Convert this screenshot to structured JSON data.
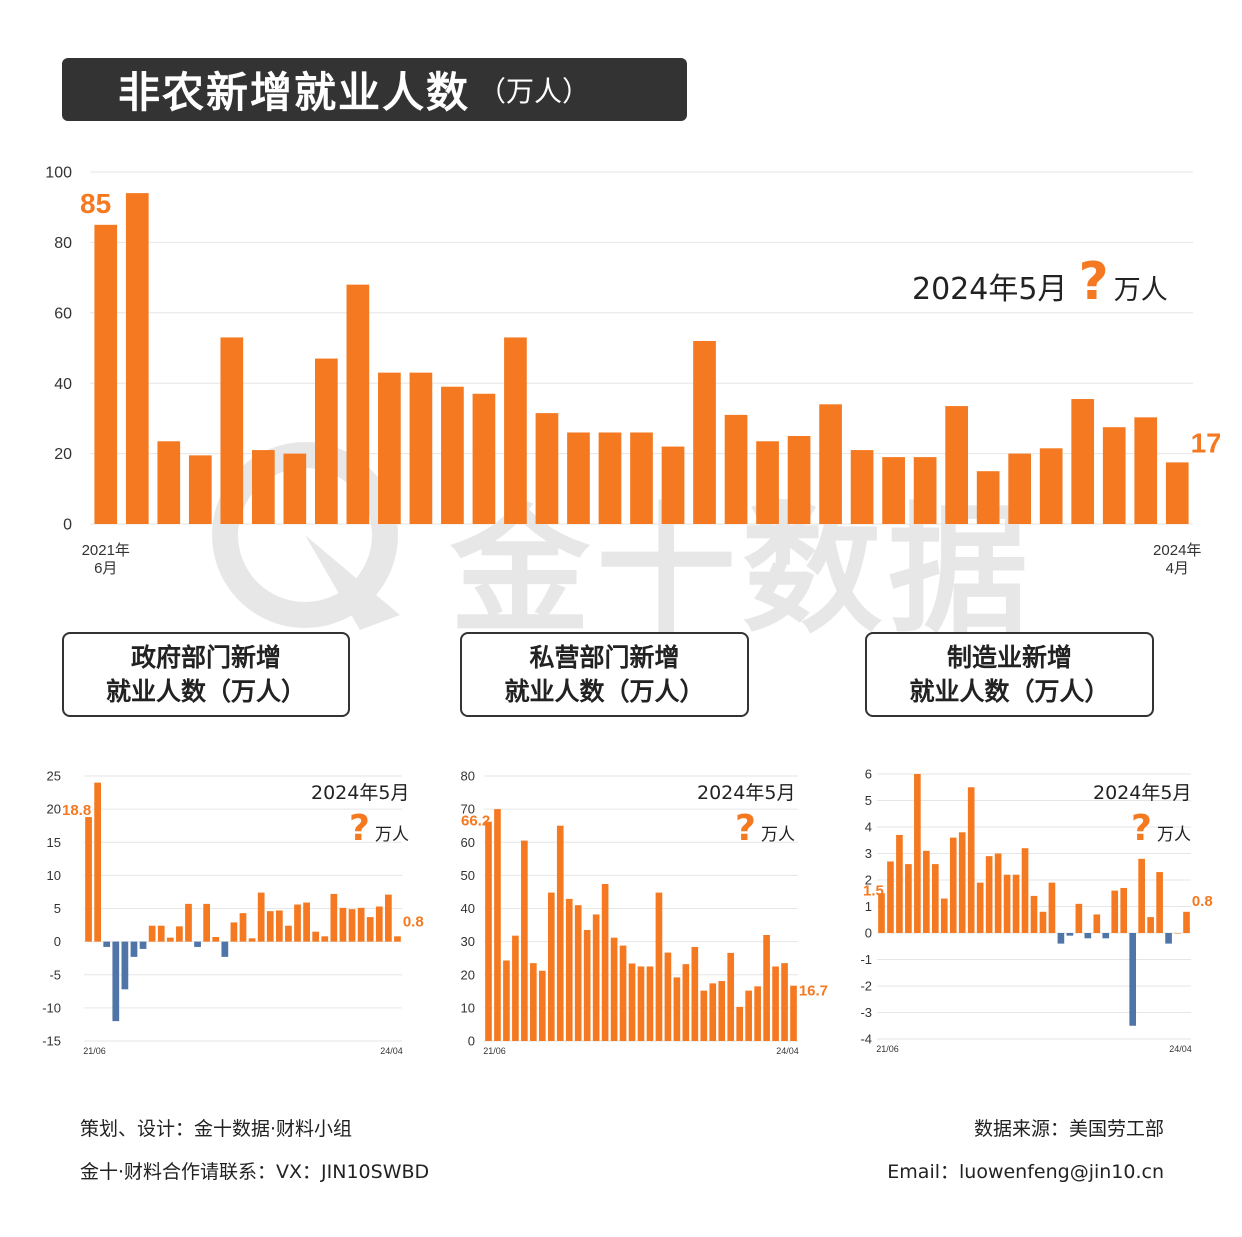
{
  "header": {
    "title": "非农新增就业人数",
    "unit": "（万人）"
  },
  "watermark": {
    "brand": "金十数据"
  },
  "colors": {
    "accent": "#f47920",
    "negative": "#4e74a8",
    "title_bg": "#333333"
  },
  "main_annotation": {
    "period": "2024年5月",
    "question": "?",
    "unit": "万人"
  },
  "sub_titles": [
    {
      "line1": "政府部门新增",
      "line2": "就业人数（万人）"
    },
    {
      "line1": "私营部门新增",
      "line2": "就业人数（万人）"
    },
    {
      "line1": "制造业新增",
      "line2": "就业人数（万人）"
    }
  ],
  "sub_annotation": {
    "period": "2024年5月",
    "question": "?",
    "unit": "万人"
  },
  "footer": {
    "credit": "策划、设计：金十数据·财料小组",
    "contact": "金十·财料合作请联系：VX：JIN10SWBD",
    "source": "数据来源：美国劳工部",
    "email": "Email：luowenfeng@jin10.cn"
  },
  "chart_data": [
    {
      "type": "bar",
      "title": "非农新增就业人数（万人）",
      "y_ticks": [
        "100",
        "80",
        "60",
        "40",
        "20",
        "0"
      ],
      "ylim": [
        0,
        100
      ],
      "x_start_label": [
        "2021年",
        "6月"
      ],
      "x_end_label": [
        "2024年",
        "4月"
      ],
      "first_label": "85",
      "last_label": "17.5",
      "grid": true,
      "values": [
        85,
        94,
        23.5,
        19.5,
        53,
        21,
        20,
        47,
        68,
        43,
        43,
        39,
        37,
        53,
        31.5,
        26,
        26,
        26,
        22,
        52,
        31,
        23.5,
        25,
        34,
        21,
        19,
        19,
        33.5,
        15,
        20,
        21.5,
        35.5,
        27.5,
        30.3,
        17.5
      ]
    },
    {
      "type": "bar",
      "title": "政府部门新增就业人数（万人）",
      "y_ticks": [
        "25",
        "20",
        "15",
        "10",
        "5",
        "0",
        "-5",
        "-10",
        "-15"
      ],
      "ylim": [
        -15,
        25
      ],
      "x_start_label": "21/06",
      "x_end_label": "24/04",
      "first_label": "18.8",
      "last_label": "0.8",
      "grid": true,
      "values": [
        18.8,
        24,
        -0.8,
        -12,
        -7.2,
        -2.3,
        -1.1,
        2.4,
        2.4,
        0.6,
        2.3,
        5.7,
        -0.8,
        5.7,
        0.7,
        -2.3,
        2.9,
        4.3,
        0.5,
        7.4,
        4.6,
        4.7,
        2.4,
        5.6,
        5.9,
        1.5,
        0.8,
        7.2,
        5.1,
        4.9,
        5.1,
        3.7,
        5.3,
        7.1,
        0.8
      ]
    },
    {
      "type": "bar",
      "title": "私营部门新增就业人数（万人）",
      "y_ticks": [
        "80",
        "70",
        "60",
        "50",
        "40",
        "30",
        "20",
        "10",
        "0"
      ],
      "ylim": [
        0,
        80
      ],
      "x_start_label": "21/06",
      "x_end_label": "24/04",
      "first_label": "66.2",
      "last_label": "16.7",
      "grid": true,
      "values": [
        66.2,
        70,
        24.3,
        31.8,
        60.5,
        23.5,
        21.2,
        44.8,
        65,
        42.9,
        41,
        33.5,
        38.2,
        47.4,
        31.2,
        28.8,
        23.4,
        22.5,
        22.5,
        44.8,
        26.7,
        19.2,
        23.2,
        28.4,
        15.2,
        17.4,
        18.1,
        26.6,
        10.3,
        15.2,
        16.5,
        32,
        22.5,
        23.5,
        16.7
      ]
    },
    {
      "type": "bar",
      "title": "制造业新增就业人数（万人）",
      "y_ticks": [
        "6",
        "5",
        "4",
        "3",
        "2",
        "1",
        "0",
        "-1",
        "-2",
        "-3",
        "-4"
      ],
      "ylim": [
        -4,
        6
      ],
      "x_start_label": "21/06",
      "x_end_label": "24/04",
      "first_label": "1.5",
      "last_label": "0.8",
      "grid": true,
      "values": [
        1.5,
        2.7,
        3.7,
        2.6,
        6,
        3.1,
        2.6,
        1.3,
        3.6,
        3.8,
        5.5,
        1.9,
        2.9,
        3,
        2.2,
        2.2,
        3.2,
        1.4,
        0.8,
        1.9,
        -0.4,
        -0.1,
        1.1,
        -0.2,
        0.7,
        -0.2,
        1.6,
        1.7,
        -3.5,
        2.8,
        0.6,
        2.3,
        -0.4,
        0,
        0.8
      ]
    }
  ]
}
